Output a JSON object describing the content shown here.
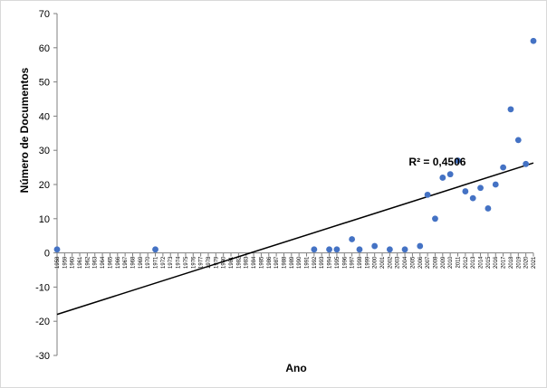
{
  "chart_data": {
    "type": "scatter",
    "title": "",
    "xlabel": "Ano",
    "ylabel": "Número de Documentos",
    "xlim": [
      1958,
      2021
    ],
    "ylim": [
      -30,
      70
    ],
    "yticks": [
      -30,
      -20,
      -10,
      0,
      10,
      20,
      30,
      40,
      50,
      60,
      70
    ],
    "xticks": [
      1958,
      1959,
      1960,
      1961,
      1962,
      1963,
      1964,
      1965,
      1966,
      1967,
      1968,
      1969,
      1970,
      1971,
      1972,
      1973,
      1974,
      1975,
      1976,
      1977,
      1978,
      1979,
      1980,
      1981,
      1982,
      1983,
      1984,
      1985,
      1986,
      1987,
      1988,
      1989,
      1990,
      1991,
      1992,
      1993,
      1994,
      1995,
      1996,
      1997,
      1998,
      1999,
      2000,
      2001,
      2002,
      2003,
      2004,
      2005,
      2006,
      2007,
      2008,
      2009,
      2010,
      2011,
      2012,
      2013,
      2014,
      2015,
      2016,
      2017,
      2018,
      2019,
      2020,
      2021
    ],
    "points": [
      {
        "x": 1958,
        "y": 1
      },
      {
        "x": 1971,
        "y": 1
      },
      {
        "x": 1992,
        "y": 1
      },
      {
        "x": 1994,
        "y": 1
      },
      {
        "x": 1995,
        "y": 1
      },
      {
        "x": 1997,
        "y": 4
      },
      {
        "x": 1998,
        "y": 1
      },
      {
        "x": 2000,
        "y": 2
      },
      {
        "x": 2002,
        "y": 1
      },
      {
        "x": 2004,
        "y": 1
      },
      {
        "x": 2006,
        "y": 2
      },
      {
        "x": 2007,
        "y": 17
      },
      {
        "x": 2008,
        "y": 10
      },
      {
        "x": 2009,
        "y": 22
      },
      {
        "x": 2010,
        "y": 23
      },
      {
        "x": 2011,
        "y": 27
      },
      {
        "x": 2012,
        "y": 18
      },
      {
        "x": 2013,
        "y": 16
      },
      {
        "x": 2014,
        "y": 19
      },
      {
        "x": 2015,
        "y": 13
      },
      {
        "x": 2016,
        "y": 20
      },
      {
        "x": 2017,
        "y": 25
      },
      {
        "x": 2018,
        "y": 42
      },
      {
        "x": 2019,
        "y": 33
      },
      {
        "x": 2020,
        "y": 26
      },
      {
        "x": 2021,
        "y": 62
      }
    ],
    "trendline": {
      "type": "linear",
      "x": [
        1958,
        2021
      ],
      "y": [
        -18,
        26.3
      ]
    },
    "annotation": "R² = 0,4506",
    "marker_color": "#4472c4",
    "line_color": "#000000",
    "grid": false,
    "legend": "none"
  }
}
